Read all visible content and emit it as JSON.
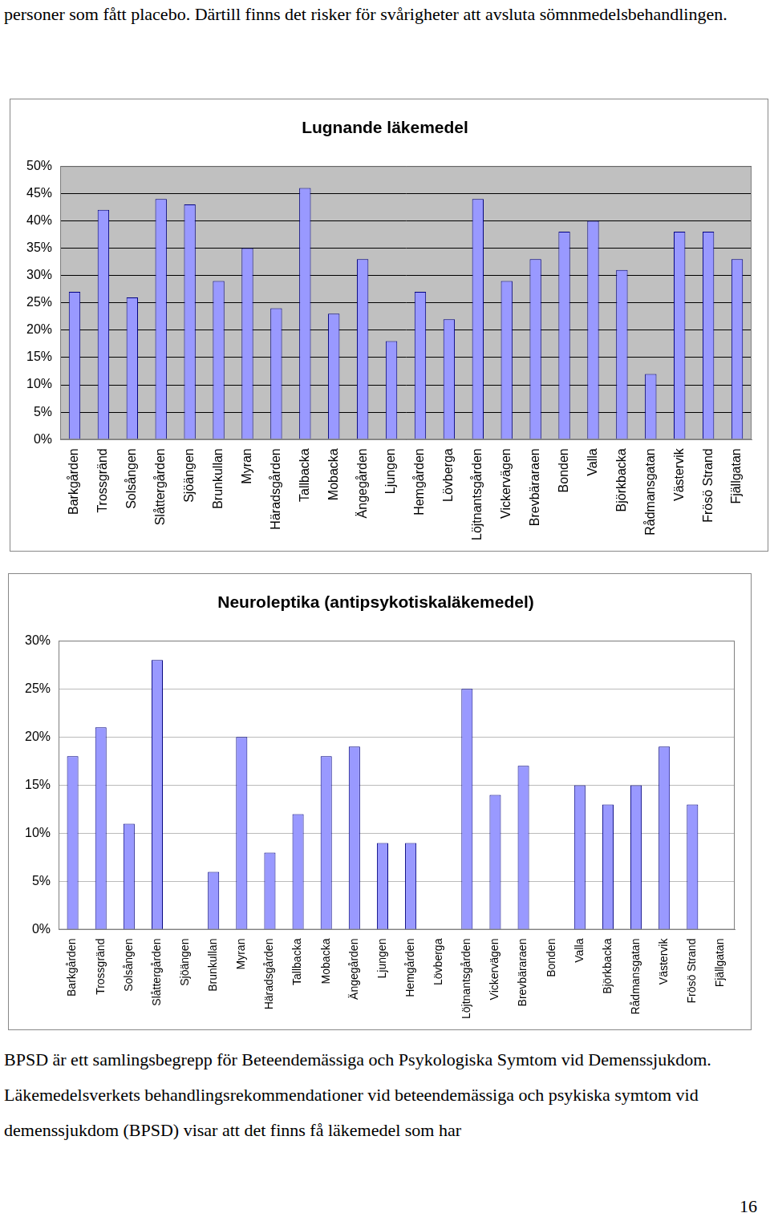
{
  "header_text": "personer som fått placebo. Därtill finns det risker för svårigheter att avsluta sömnmedelsbehandlingen.",
  "chart_data": [
    {
      "type": "bar",
      "title": "Lugnande läkemedel",
      "categories": [
        "Barkgården",
        "Trossgränd",
        "Solsången",
        "Slåttergården",
        "Sjöängen",
        "Brunkullan",
        "Myran",
        "Häradsgården",
        "Tallbacka",
        "Mobacka",
        "Ängegården",
        "Ljungen",
        "Hemgården",
        "Lövberga",
        "Löjtnantsgården",
        "Vickervägen",
        "Brevbäraraen",
        "Bonden",
        "Valla",
        "Björkbacka",
        "Rådmansgatan",
        "Västervik",
        "Frösö Strand",
        "Fjällgatan"
      ],
      "values": [
        27,
        42,
        26,
        44,
        43,
        29,
        35,
        24,
        46,
        23,
        33,
        18,
        27,
        22,
        44,
        29,
        33,
        38,
        40,
        31,
        12,
        38,
        38,
        33
      ],
      "color": "#9999ff",
      "ylim": [
        0,
        50
      ],
      "yticks": [
        {
          "value": 0,
          "label": "0%"
        },
        {
          "value": 5,
          "label": "5%"
        },
        {
          "value": 10,
          "label": "10%"
        },
        {
          "value": 15,
          "label": "15%"
        },
        {
          "value": 20,
          "label": "20%"
        },
        {
          "value": 25,
          "label": "25%"
        },
        {
          "value": 30,
          "label": "30%"
        },
        {
          "value": 35,
          "label": "35%"
        },
        {
          "value": 40,
          "label": "40%"
        },
        {
          "value": 45,
          "label": "45%"
        },
        {
          "value": 50,
          "label": "50%"
        }
      ],
      "grid": true
    },
    {
      "type": "bar",
      "title": "Neuroleptika (antipsykotiskaläkemedel)",
      "categories": [
        "Barkgården",
        "Trossgränd",
        "Solsången",
        "Slåttergården",
        "Sjöängen",
        "Brunkullan",
        "Myran",
        "Häradsgården",
        "Tallbacka",
        "Mobacka",
        "Ängegården",
        "Ljungen",
        "Hemgården",
        "Lövberga",
        "Löjtnantsgården",
        "Vickervägen",
        "Brevbäraraen",
        "Bonden",
        "Valla",
        "Björkbacka",
        "Rådmansgatan",
        "Västervik",
        "Frösö Strand",
        "Fjällgatan"
      ],
      "values": [
        18,
        21,
        11,
        28,
        0,
        6,
        20,
        8,
        12,
        18,
        19,
        9,
        9,
        0,
        25,
        14,
        17,
        0,
        15,
        13,
        15,
        19,
        13,
        0
      ],
      "color": "#9999ff",
      "ylim": [
        0,
        30
      ],
      "yticks": [
        {
          "value": 0,
          "label": "0%"
        },
        {
          "value": 5,
          "label": "5%"
        },
        {
          "value": 10,
          "label": "10%"
        },
        {
          "value": 15,
          "label": "15%"
        },
        {
          "value": 20,
          "label": "20%"
        },
        {
          "value": 25,
          "label": "25%"
        },
        {
          "value": 30,
          "label": "30%"
        }
      ],
      "grid": true
    }
  ],
  "body_text": "BPSD är ett samlingsbegrepp för Beteendemässiga och Psykologiska Symtom vid Demenssjukdom. Läkemedelsverkets behandlingsrekommendationer vid beteendemässiga och psykiska symtom vid demenssjukdom (BPSD) visar att det finns få läkemedel som har",
  "page_number": "16"
}
